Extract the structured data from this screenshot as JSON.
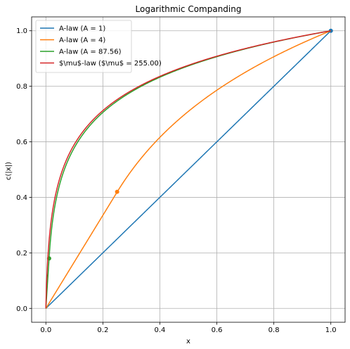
{
  "chart_data": {
    "type": "line",
    "title": "Logarithmic Companding",
    "xlabel": "x",
    "ylabel": "c(|x|)",
    "xlim": [
      -0.05,
      1.05
    ],
    "ylim": [
      -0.05,
      1.05
    ],
    "xticks": [
      "0.0",
      "0.2",
      "0.4",
      "0.6",
      "0.8",
      "1.0"
    ],
    "yticks": [
      "0.0",
      "0.2",
      "0.4",
      "0.6",
      "0.8",
      "1.0"
    ],
    "grid": true,
    "legend_position": "top-left",
    "series": [
      {
        "name": "A-law (A = 1)",
        "law": "A",
        "param": 1,
        "color": "#1f77b4",
        "points": [
          [
            0,
            0
          ],
          [
            0.2,
            0.2
          ],
          [
            0.4,
            0.4
          ],
          [
            0.6,
            0.6
          ],
          [
            0.8,
            0.8
          ],
          [
            1.0,
            1.0
          ]
        ],
        "markers": [
          [
            1.0,
            1.0
          ]
        ]
      },
      {
        "name": "A-law (A = 4)",
        "law": "A",
        "param": 4,
        "color": "#ff7f0e",
        "points": [
          [
            0,
            0
          ],
          [
            0.25,
            0.42
          ],
          [
            0.4,
            0.61
          ],
          [
            0.6,
            0.79
          ],
          [
            0.8,
            0.91
          ],
          [
            1.0,
            1.0
          ]
        ],
        "markers": [
          [
            0.25,
            0.42
          ]
        ]
      },
      {
        "name": "A-law (A = 87.56)",
        "law": "A",
        "param": 87.56,
        "color": "#2ca02c",
        "points": [
          [
            0,
            0
          ],
          [
            0.0114,
            0.18
          ],
          [
            0.05,
            0.46
          ],
          [
            0.2,
            0.7
          ],
          [
            0.5,
            0.87
          ],
          [
            1.0,
            1.0
          ]
        ],
        "markers": [
          [
            0.0114,
            0.18
          ]
        ]
      },
      {
        "name": "$\\mu$-law ($\\mu$ = 255.00)",
        "law": "mu",
        "param": 255,
        "color": "#d62728",
        "points": [
          [
            0,
            0
          ],
          [
            0.05,
            0.48
          ],
          [
            0.2,
            0.71
          ],
          [
            0.5,
            0.88
          ],
          [
            1.0,
            1.0
          ]
        ],
        "markers": []
      }
    ]
  }
}
